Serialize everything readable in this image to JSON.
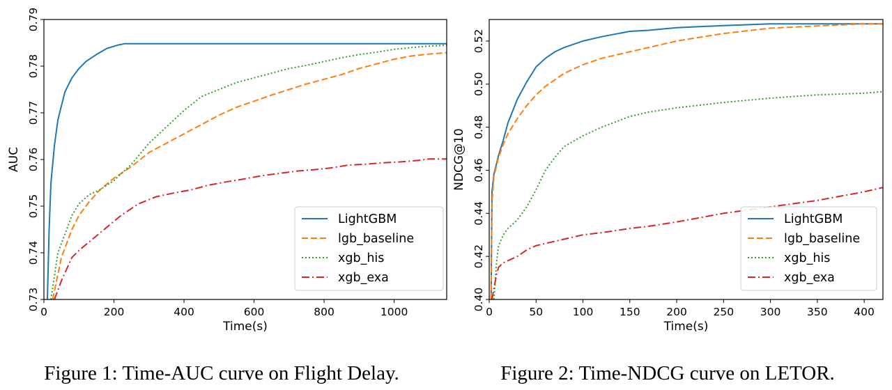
{
  "chart_data": [
    {
      "type": "line",
      "caption": "Figure 1: Time-AUC curve on Flight Delay.",
      "xlabel": "Time(s)",
      "ylabel": "AUC",
      "xlim": [
        0,
        1150
      ],
      "ylim": [
        0.73,
        0.79
      ],
      "xticks": [
        0,
        200,
        400,
        600,
        800,
        1000
      ],
      "yticks": [
        0.73,
        0.74,
        0.75,
        0.76,
        0.77,
        0.78,
        0.79
      ],
      "xtick_labels": [
        "0",
        "200",
        "400",
        "600",
        "800",
        "1000"
      ],
      "ytick_labels": [
        "0.73",
        "0.74",
        "0.75",
        "0.76",
        "0.77",
        "0.78",
        "0.79"
      ],
      "grid": false,
      "legend_position": "lower-right",
      "series": [
        {
          "name": "LightGBM",
          "color": "#1f77b4",
          "style": "solid",
          "x": [
            10,
            15,
            20,
            30,
            40,
            50,
            60,
            70,
            80,
            100,
            120,
            150,
            180,
            210,
            230,
            260,
            400,
            600,
            800,
            1000,
            1150
          ],
          "y": [
            0.73,
            0.745,
            0.755,
            0.763,
            0.7685,
            0.7715,
            0.7745,
            0.776,
            0.7775,
            0.7795,
            0.781,
            0.7825,
            0.7838,
            0.7845,
            0.7848,
            0.7848,
            0.7848,
            0.7848,
            0.7848,
            0.7848,
            0.7848
          ]
        },
        {
          "name": "lgb_baseline",
          "color": "#ff7f0e",
          "style": "dashed",
          "x": [
            25,
            50,
            80,
            100,
            130,
            160,
            200,
            250,
            300,
            350,
            400,
            450,
            500,
            550,
            600,
            650,
            700,
            750,
            800,
            850,
            900,
            950,
            1000,
            1050,
            1100,
            1150
          ],
          "y": [
            0.73,
            0.739,
            0.745,
            0.748,
            0.751,
            0.7535,
            0.756,
            0.7585,
            0.7615,
            0.7635,
            0.7655,
            0.7675,
            0.7695,
            0.7712,
            0.7725,
            0.7738,
            0.775,
            0.7762,
            0.7772,
            0.7782,
            0.7795,
            0.7805,
            0.7815,
            0.7822,
            0.7826,
            0.7829
          ]
        },
        {
          "name": "xgb_his",
          "color": "#2ca02c",
          "style": "dotted",
          "x": [
            20,
            40,
            60,
            80,
            100,
            130,
            160,
            200,
            250,
            300,
            350,
            400,
            450,
            500,
            550,
            600,
            650,
            700,
            750,
            800,
            850,
            900,
            950,
            1000,
            1050,
            1100,
            1150
          ],
          "y": [
            0.73,
            0.74,
            0.744,
            0.748,
            0.7505,
            0.7525,
            0.7535,
            0.7555,
            0.759,
            0.7635,
            0.767,
            0.7705,
            0.7735,
            0.775,
            0.7765,
            0.7775,
            0.7785,
            0.7795,
            0.7802,
            0.781,
            0.7818,
            0.7825,
            0.783,
            0.7836,
            0.784,
            0.7843,
            0.7845
          ]
        },
        {
          "name": "xgb_exa",
          "color": "#d62728",
          "style": "dashdot",
          "x": [
            30,
            50,
            80,
            100,
            140,
            180,
            220,
            270,
            320,
            370,
            420,
            470,
            520,
            570,
            620,
            670,
            720,
            770,
            820,
            870,
            920,
            970,
            1020,
            1070,
            1100,
            1150
          ],
          "y": [
            0.73,
            0.734,
            0.739,
            0.7405,
            0.743,
            0.7455,
            0.748,
            0.7505,
            0.752,
            0.7528,
            0.7535,
            0.7545,
            0.7552,
            0.7558,
            0.7565,
            0.757,
            0.7575,
            0.7578,
            0.7582,
            0.7588,
            0.759,
            0.7593,
            0.7595,
            0.7598,
            0.7601,
            0.7601
          ]
        }
      ]
    },
    {
      "type": "line",
      "caption": "Figure 2: Time-NDCG curve on LETOR.",
      "xlabel": "Time(s)",
      "ylabel": "NDCG@10",
      "xlim": [
        0,
        420
      ],
      "ylim": [
        0.4,
        0.53
      ],
      "xticks": [
        0,
        50,
        100,
        150,
        200,
        250,
        300,
        350,
        400
      ],
      "yticks": [
        0.4,
        0.42,
        0.44,
        0.46,
        0.48,
        0.5,
        0.52
      ],
      "xtick_labels": [
        "0",
        "50",
        "100",
        "150",
        "200",
        "250",
        "300",
        "350",
        "400"
      ],
      "ytick_labels": [
        "0.40",
        "0.42",
        "0.44",
        "0.46",
        "0.48",
        "0.50",
        "0.52"
      ],
      "grid": false,
      "legend_position": "lower-right",
      "series": [
        {
          "name": "LightGBM",
          "color": "#1f77b4",
          "style": "solid",
          "x": [
            2,
            3,
            5,
            10,
            15,
            20,
            30,
            40,
            50,
            60,
            70,
            80,
            100,
            120,
            150,
            170,
            200,
            250,
            300,
            350,
            400,
            420
          ],
          "y": [
            0.4,
            0.45,
            0.458,
            0.467,
            0.474,
            0.482,
            0.493,
            0.501,
            0.508,
            0.512,
            0.515,
            0.517,
            0.52,
            0.522,
            0.5245,
            0.525,
            0.5262,
            0.5272,
            0.528,
            0.528,
            0.528,
            0.528
          ]
        },
        {
          "name": "lgb_baseline",
          "color": "#ff7f0e",
          "style": "dashed",
          "x": [
            2,
            3,
            5,
            10,
            15,
            20,
            30,
            40,
            50,
            60,
            70,
            80,
            100,
            120,
            150,
            170,
            200,
            250,
            300,
            350,
            400,
            420
          ],
          "y": [
            0.4,
            0.445,
            0.457,
            0.466,
            0.472,
            0.477,
            0.484,
            0.49,
            0.495,
            0.499,
            0.502,
            0.505,
            0.509,
            0.512,
            0.515,
            0.517,
            0.52,
            0.5235,
            0.526,
            0.527,
            0.528,
            0.528
          ]
        },
        {
          "name": "xgb_his",
          "color": "#2ca02c",
          "style": "dotted",
          "x": [
            5,
            8,
            10,
            15,
            20,
            30,
            40,
            50,
            60,
            70,
            80,
            100,
            120,
            150,
            170,
            200,
            250,
            300,
            350,
            400,
            420
          ],
          "y": [
            0.4,
            0.418,
            0.425,
            0.43,
            0.433,
            0.437,
            0.443,
            0.451,
            0.46,
            0.466,
            0.471,
            0.476,
            0.48,
            0.485,
            0.487,
            0.489,
            0.4915,
            0.4935,
            0.495,
            0.4958,
            0.4965
          ]
        },
        {
          "name": "xgb_exa",
          "color": "#d62728",
          "style": "dashdot",
          "x": [
            3,
            5,
            8,
            10,
            15,
            20,
            30,
            40,
            50,
            60,
            70,
            80,
            100,
            120,
            150,
            170,
            200,
            250,
            300,
            350,
            400,
            420
          ],
          "y": [
            0.4,
            0.405,
            0.412,
            0.415,
            0.417,
            0.418,
            0.42,
            0.423,
            0.425,
            0.426,
            0.427,
            0.428,
            0.43,
            0.431,
            0.433,
            0.434,
            0.436,
            0.44,
            0.443,
            0.446,
            0.45,
            0.452
          ]
        }
      ]
    }
  ]
}
